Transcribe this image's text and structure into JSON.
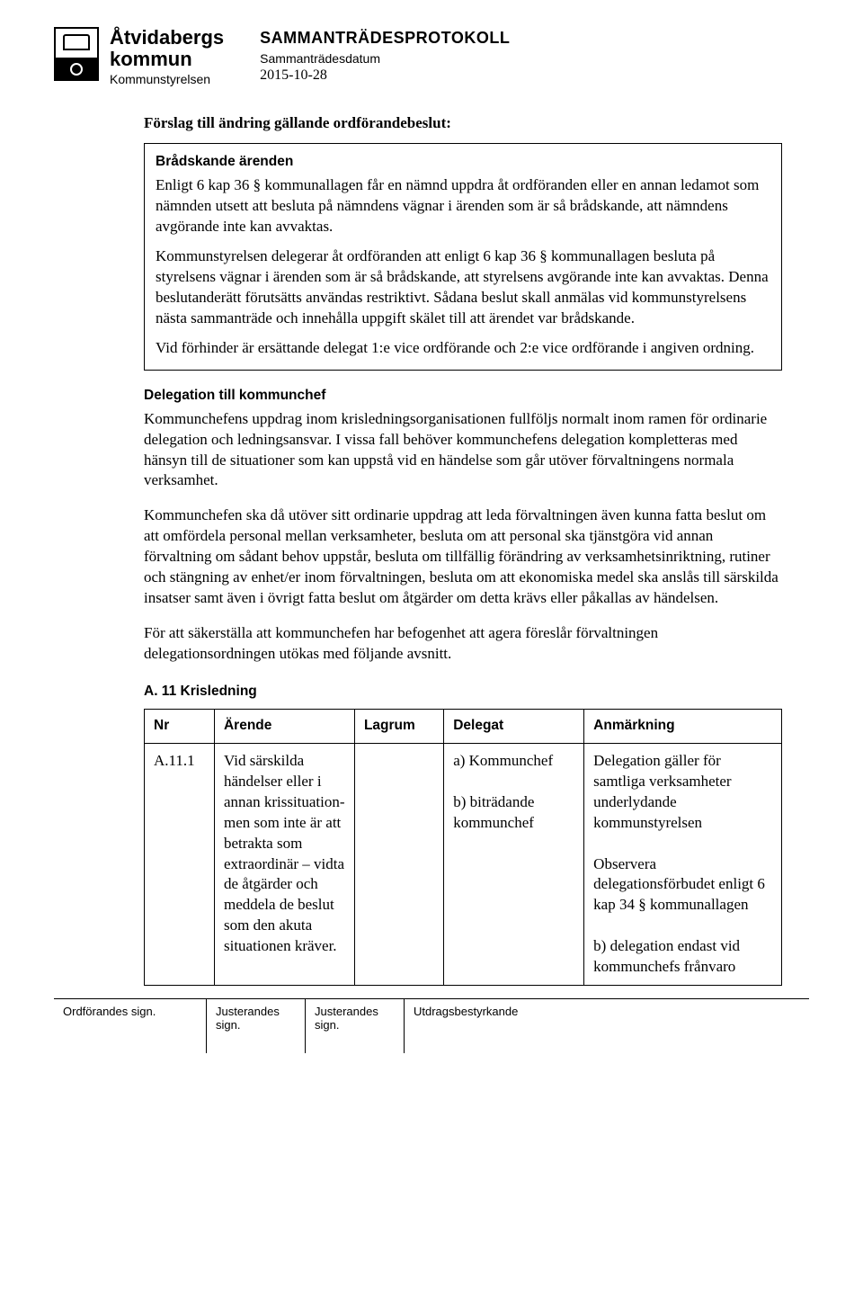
{
  "header": {
    "org_line1": "Åtvidabergs",
    "org_line2": "kommun",
    "org_sub": "Kommunstyrelsen",
    "doc_type": "SAMMANTRÄDESPROTOKOLL",
    "doc_subtype": "Sammanträdesdatum",
    "doc_date": "2015-10-28"
  },
  "title": "Förslag till ändring gällande ordförandebeslut:",
  "box": {
    "heading": "Brådskande ärenden",
    "p1": "Enligt 6 kap 36 § kommunallagen får en nämnd uppdra åt ordföranden eller en annan ledamot som nämnden utsett att besluta på nämndens vägnar i ärenden som är så brådskande, att nämndens avgörande inte kan avvaktas.",
    "p2": "Kommunstyrelsen delegerar åt ordföranden att enligt 6 kap 36 § kommunallagen besluta på styrelsens vägnar i ärenden som är så brådskande, att styrelsens avgörande inte kan avvaktas. Denna beslutanderätt förutsätts användas restriktivt. Sådana beslut skall anmälas vid kommunstyrelsens nästa sammanträde och innehålla uppgift skälet till att ärendet var brådskande.",
    "p3": "Vid förhinder är ersättande delegat 1:e vice ordförande och 2:e vice ordförande i angiven ordning."
  },
  "delegation": {
    "heading": "Delegation till kommunchef",
    "p1": "Kommunchefens uppdrag inom krisledningsorganisationen fullföljs normalt inom ramen för ordinarie delegation och ledningsansvar. I vissa fall behöver kommunchefens delegation kompletteras med hänsyn till de situationer som kan uppstå vid en händelse som går utöver förvaltningens normala verksamhet.",
    "p2": "Kommunchefen ska då utöver sitt ordinarie uppdrag att leda förvaltningen även kunna fatta beslut om att omfördela personal mellan verksamheter, besluta om att personal ska tjänstgöra vid annan förvaltning om sådant behov uppstår, besluta om tillfällig förändring av verksamhetsinriktning, rutiner och stängning av enhet/er inom förvaltningen, besluta om att ekonomiska medel ska anslås till särskilda insatser samt även i övrigt fatta beslut om åtgärder om detta krävs eller påkallas av händelsen.",
    "p3": "För att säkerställa att kommunchefen har befogenhet att agera föreslår förvaltningen delegationsordningen utökas med följande avsnitt."
  },
  "table": {
    "heading": "A. 11 Krisledning",
    "columns": [
      "Nr",
      "Ärende",
      "Lagrum",
      "Delegat",
      "Anmärkning"
    ],
    "row": {
      "nr": "A.11.1",
      "arende": "Vid särskilda händelser eller i annan krissituation- men som inte är att betrakta som extraordinär  – vidta de åtgärder och meddela de beslut som den akuta situationen kräver.",
      "lagrum": "",
      "delegat": "a) Kommunchef\n\nb) biträdande kommunchef",
      "anmarkning": "Delegation gäller för samtliga verksamheter underlydande kommunstyrelsen\n\nObservera delegationsförbudet enligt 6 kap 34 § kommunallagen\n\nb) delegation endast vid kommunchefs frånvaro"
    }
  },
  "footer": {
    "c1": "Ordförandes sign.",
    "c2": "Justerandes sign.",
    "c3": "Justerandes sign.",
    "c4": "Utdragsbestyrkande"
  }
}
